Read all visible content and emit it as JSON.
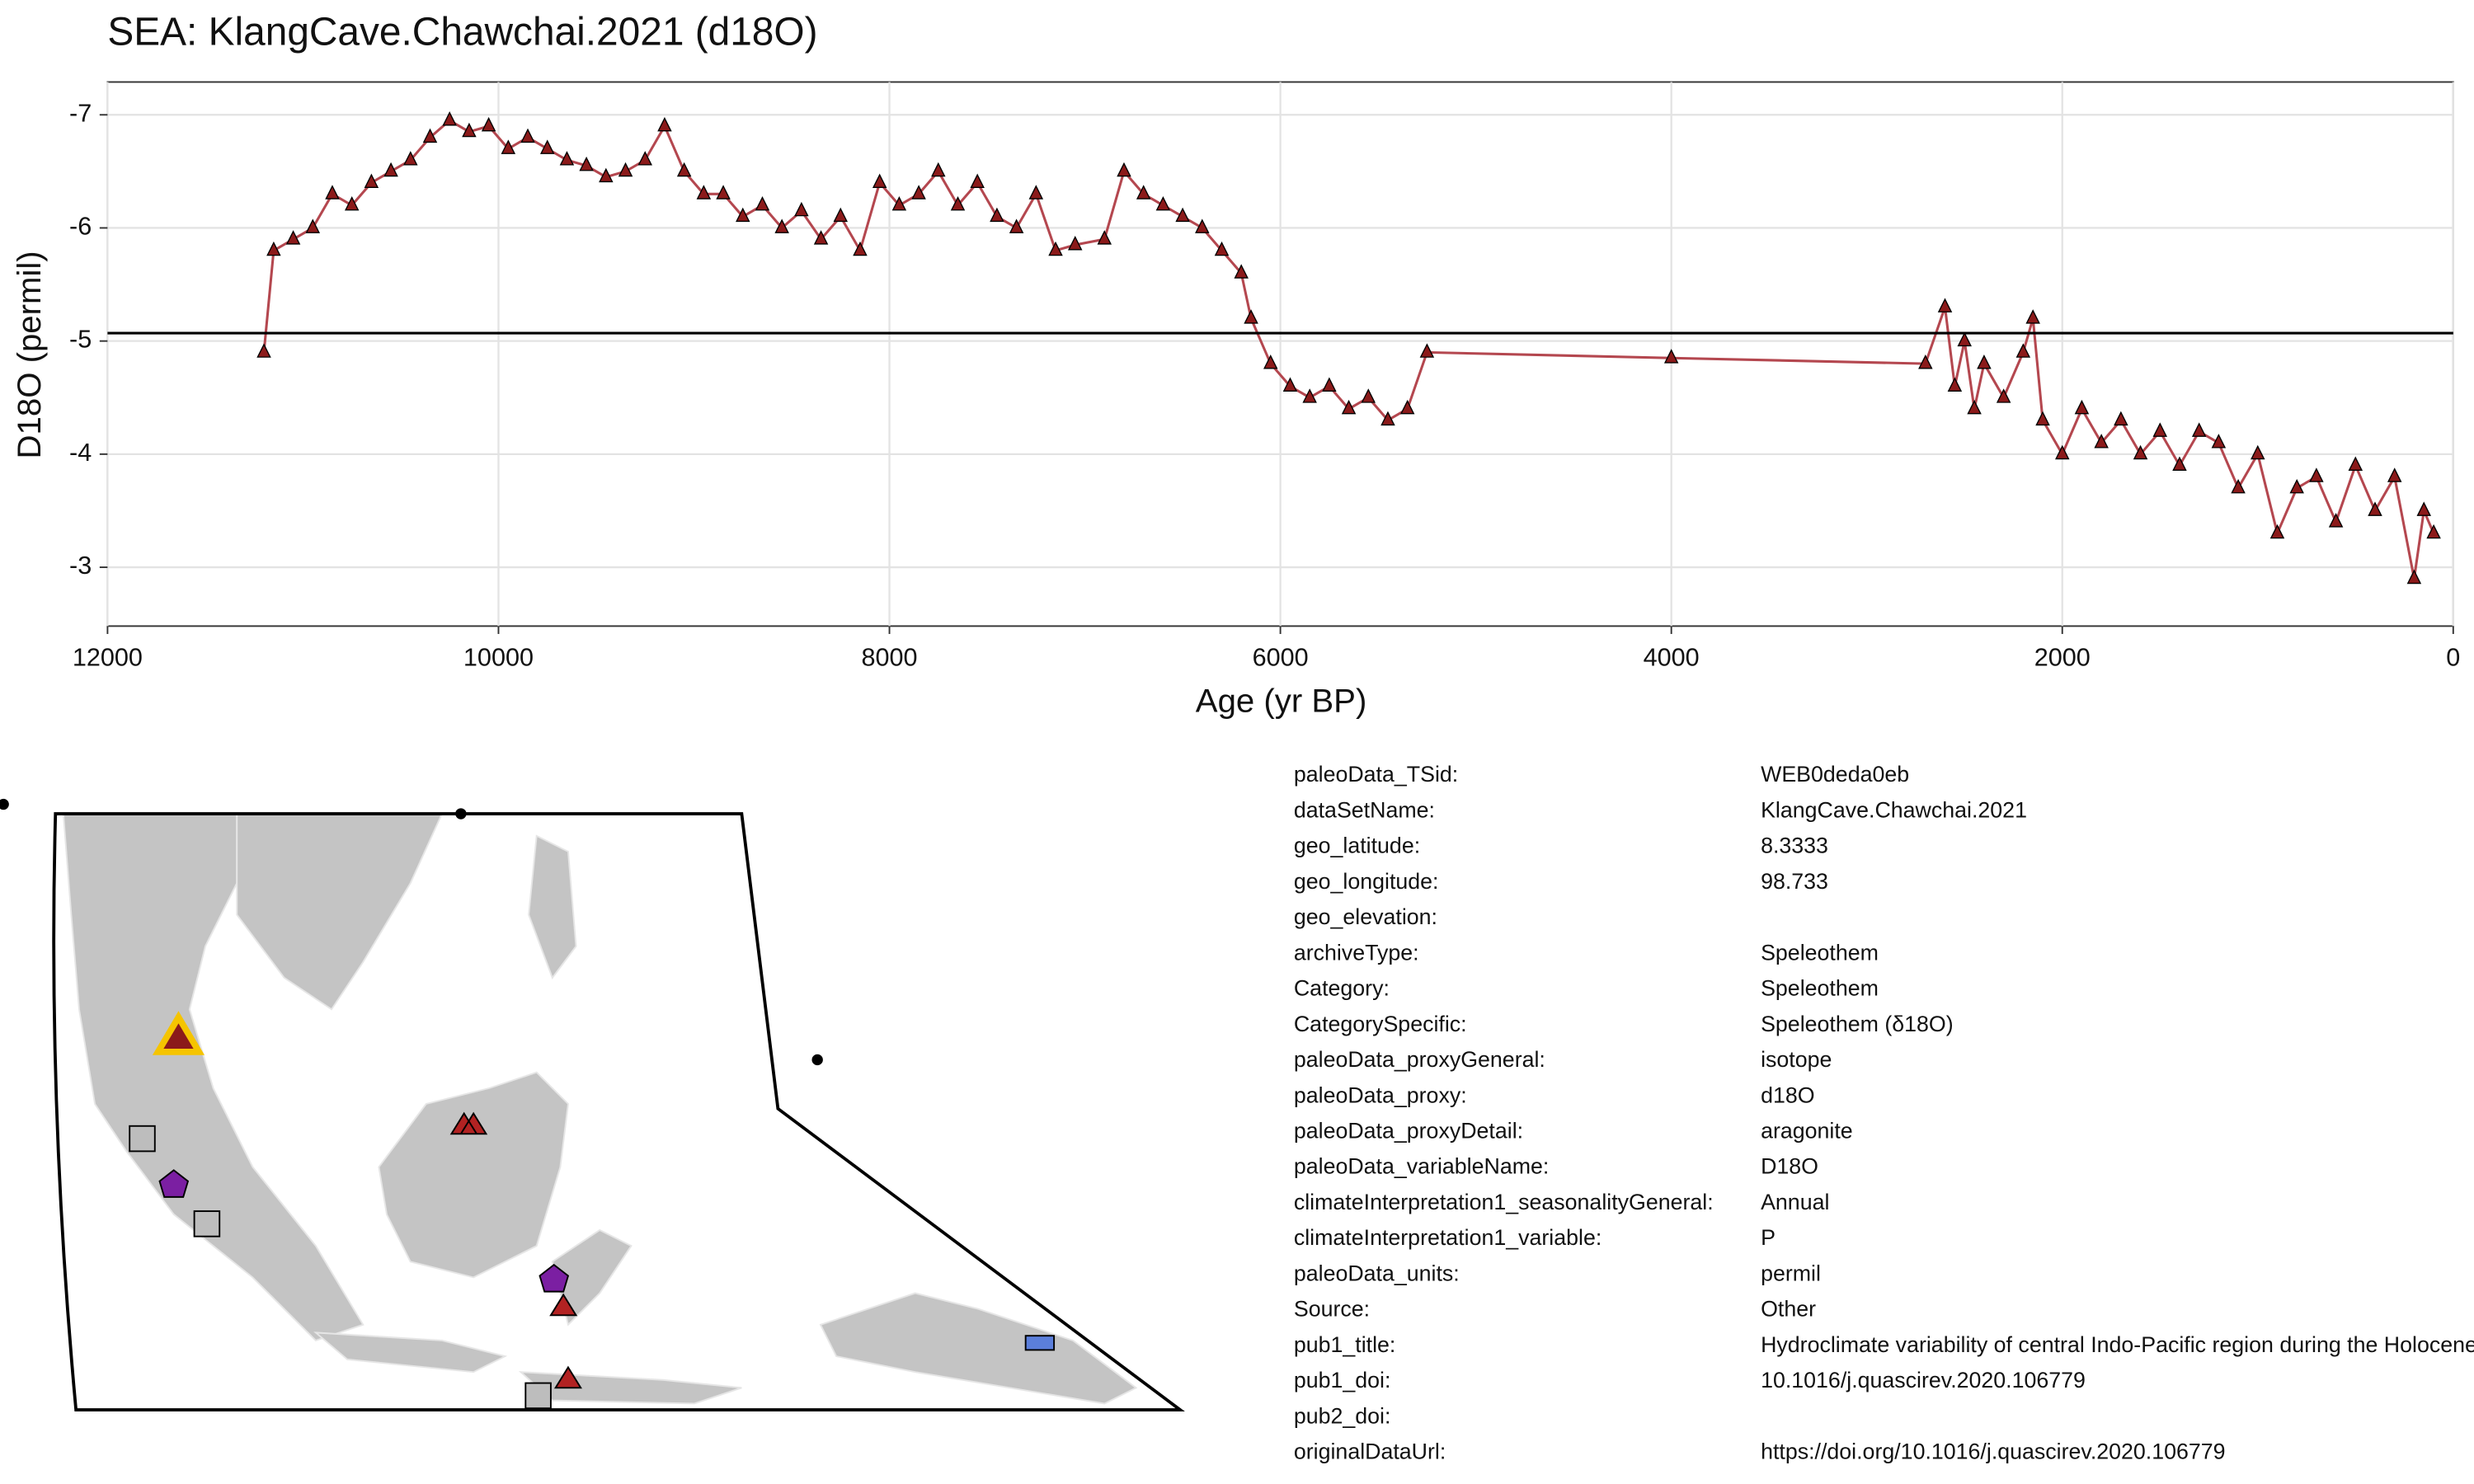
{
  "chart_data": {
    "type": "line",
    "title": "SEA: KlangCave.Chawchai.2021 (d18O)",
    "x_label": "Age (yr BP)",
    "y_label": "D18O (permil)",
    "x": [
      11200,
      11150,
      11050,
      10950,
      10850,
      10750,
      10650,
      10550,
      10450,
      10350,
      10250,
      10150,
      10050,
      9950,
      9850,
      9750,
      9650,
      9550,
      9450,
      9350,
      9250,
      9150,
      9050,
      8950,
      8850,
      8750,
      8650,
      8550,
      8450,
      8350,
      8250,
      8150,
      8050,
      7950,
      7850,
      7750,
      7650,
      7550,
      7450,
      7350,
      7250,
      7150,
      7050,
      6900,
      6800,
      6700,
      6600,
      6500,
      6400,
      6300,
      6200,
      6150,
      6050,
      5950,
      5850,
      5750,
      5650,
      5550,
      5450,
      5350,
      5250,
      4000,
      2700,
      2600,
      2550,
      2500,
      2450,
      2400,
      2300,
      2200,
      2150,
      2100,
      2000,
      1900,
      1800,
      1700,
      1600,
      1500,
      1400,
      1300,
      1200,
      1100,
      1000,
      900,
      800,
      700,
      600,
      500,
      400,
      300,
      200,
      150,
      100
    ],
    "series": [
      {
        "name": "D18O",
        "color": "#b4474f",
        "marker_color": "#8b1a1a",
        "values": [
          -4.9,
          -5.8,
          -5.9,
          -6.0,
          -6.3,
          -6.2,
          -6.4,
          -6.5,
          -6.6,
          -6.8,
          -6.95,
          -6.85,
          -6.9,
          -6.7,
          -6.8,
          -6.7,
          -6.6,
          -6.55,
          -6.45,
          -6.5,
          -6.6,
          -6.9,
          -6.5,
          -6.3,
          -6.3,
          -6.1,
          -6.2,
          -6.0,
          -6.15,
          -5.9,
          -6.1,
          -5.8,
          -6.4,
          -6.2,
          -6.3,
          -6.5,
          -6.2,
          -6.4,
          -6.1,
          -6.0,
          -6.3,
          -5.8,
          -5.85,
          -5.9,
          -6.5,
          -6.3,
          -6.2,
          -6.1,
          -6.0,
          -5.8,
          -5.6,
          -5.2,
          -4.8,
          -4.6,
          -4.5,
          -4.6,
          -4.4,
          -4.5,
          -4.3,
          -4.4,
          -4.9,
          -4.85,
          -4.8,
          -5.3,
          -4.6,
          -5.0,
          -4.4,
          -4.8,
          -4.5,
          -4.9,
          -5.2,
          -4.3,
          -4.0,
          -4.4,
          -4.1,
          -4.3,
          -4.0,
          -4.2,
          -3.9,
          -4.2,
          -4.1,
          -3.7,
          -4.0,
          -3.3,
          -3.7,
          -3.8,
          -3.4,
          -3.9,
          -3.5,
          -3.8,
          -2.9,
          -3.5,
          -3.3
        ]
      }
    ],
    "mean_line": -5.07,
    "xlim": [
      12000,
      0
    ],
    "xticks": [
      12000,
      10000,
      8000,
      6000,
      4000,
      2000,
      0
    ],
    "ylim": [
      -2.48,
      -7.29
    ],
    "yticks": [
      -7,
      -6,
      -5,
      -4,
      -3
    ],
    "grid": true
  },
  "metadata": {
    "rows": [
      [
        "paleoData_TSid:",
        "WEB0deda0eb"
      ],
      [
        "dataSetName:",
        "KlangCave.Chawchai.2021"
      ],
      [
        "geo_latitude:",
        "8.3333"
      ],
      [
        "geo_longitude:",
        "98.733"
      ],
      [
        "geo_elevation:",
        ""
      ],
      [
        "archiveType:",
        "Speleothem"
      ],
      [
        "Category:",
        "Speleothem"
      ],
      [
        "CategorySpecific:",
        "Speleothem (δ18O)"
      ],
      [
        "paleoData_proxyGeneral:",
        "isotope"
      ],
      [
        "paleoData_proxy:",
        "d18O"
      ],
      [
        "paleoData_proxyDetail:",
        "aragonite"
      ],
      [
        "paleoData_variableName:",
        "D18O"
      ],
      [
        "climateInterpretation1_seasonalityGeneral:",
        "Annual"
      ],
      [
        "climateInterpretation1_variable:",
        "P"
      ],
      [
        "paleoData_units:",
        "permil"
      ],
      [
        "Source:",
        "Other"
      ],
      [
        "pub1_title:",
        "Hydroclimate variability of central Indo-Pacific region during the Holocene"
      ],
      [
        "pub1_doi:",
        "10.1016/j.quascirev.2020.106779"
      ],
      [
        "pub2_doi:",
        ""
      ],
      [
        "originalDataUrl:",
        "https://doi.org/10.1016/j.quascirev.2020.106779"
      ]
    ]
  }
}
